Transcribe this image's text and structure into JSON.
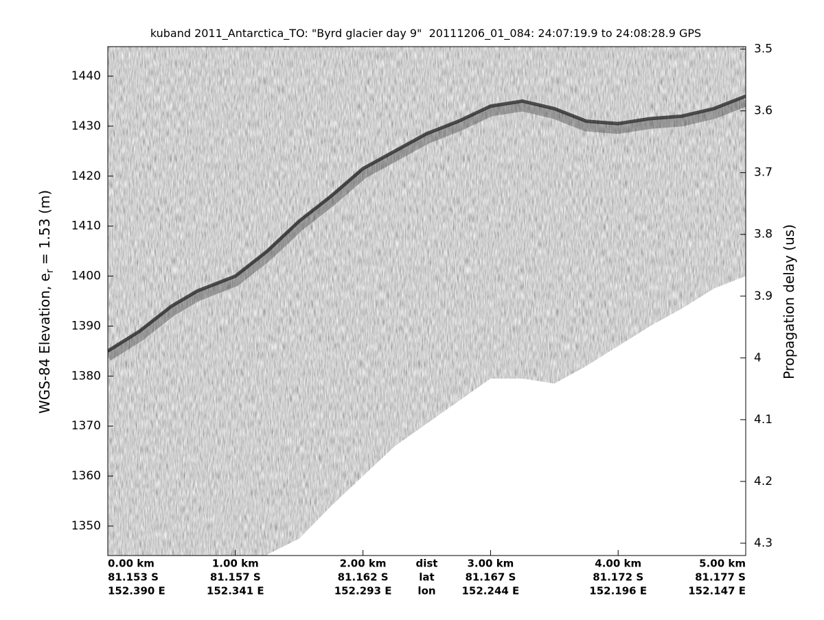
{
  "chart_data": {
    "type": "echogram",
    "title": "kuband 2011_Antarctica_TO: \"Byrd glacier day 9\"  20111206_01_084: 24:07:19.9 to 24:08:28.9 GPS",
    "ylabel": {
      "before": "WGS-84 Elevation, e",
      "sub": "r",
      "after": " = 1.53 (m)"
    },
    "y2label": "Propagation delay (us)",
    "xlim": [
      0,
      5
    ],
    "ylim": [
      1344.1,
      1445.9
    ],
    "y2lim": [
      3.496,
      4.32
    ],
    "xticks": [
      {
        "value": 0,
        "label": "0.00 km"
      },
      {
        "value": 1,
        "label": "1.00 km"
      },
      {
        "value": 2,
        "label": "2.00 km"
      },
      {
        "value": 3,
        "label": "3.00 km"
      },
      {
        "value": 4,
        "label": "4.00 km"
      },
      {
        "value": 5,
        "label": "5.00 km"
      }
    ],
    "lat_labels": [
      "81.153 S",
      "81.157 S",
      "81.162 S",
      "81.167 S",
      "81.172 S",
      "81.177 S"
    ],
    "lon_labels": [
      "152.390 E",
      "152.341 E",
      "152.293 E",
      "152.244 E",
      "152.196 E",
      "152.147 E"
    ],
    "row_labels": [
      "dist",
      "lat",
      "lon"
    ],
    "yticks": [
      1350,
      1360,
      1370,
      1380,
      1390,
      1400,
      1410,
      1420,
      1430,
      1440
    ],
    "y2ticks": [
      3.5,
      3.6,
      3.7,
      3.8,
      3.9,
      4,
      4.1,
      4.2,
      4.3
    ],
    "x": [
      0,
      0.25,
      0.5,
      0.7,
      1.0,
      1.25,
      1.5,
      1.75,
      2.0,
      2.25,
      2.5,
      2.75,
      3.0,
      3.25,
      3.5,
      3.75,
      4.0,
      4.25,
      4.5,
      4.75,
      5.0
    ],
    "series": [
      {
        "color": "#2a2a2a",
        "values": [
          1385,
          1389,
          1394,
          1397,
          1400,
          1405,
          1411,
          1416,
          1421.5,
          1425,
          1428.5,
          1431,
          1434,
          1435,
          1433.5,
          1431,
          1430.5,
          1431.5,
          1432,
          1433.5,
          1436
        ]
      },
      {
        "color": "#ffffff",
        "values": [
          null,
          null,
          null,
          null,
          null,
          1344.3,
          1347.5,
          1354,
          1360,
          1366,
          1370.5,
          1375,
          1379.5,
          1379.5,
          1378.5,
          1382,
          1386,
          1390,
          1393.5,
          1397.5,
          1400
        ]
      }
    ]
  }
}
